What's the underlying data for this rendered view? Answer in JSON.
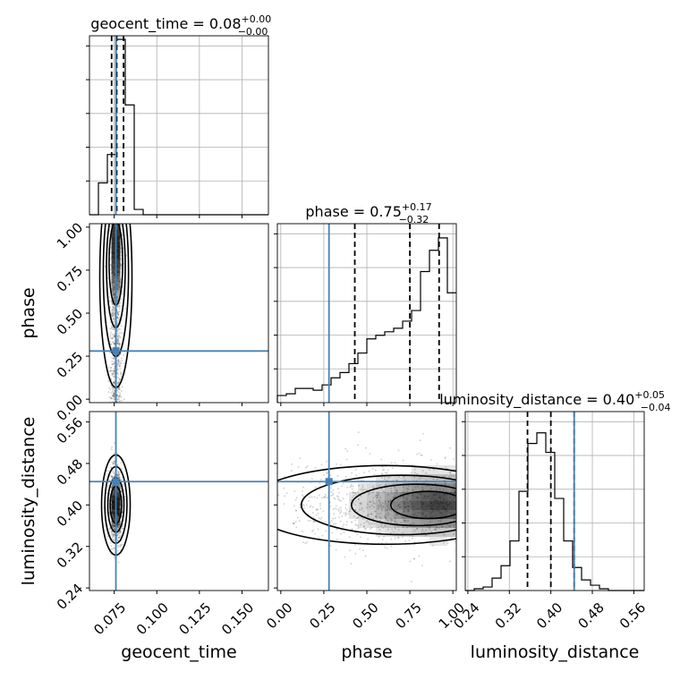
{
  "chart_data": {
    "type": "corner",
    "parameters": [
      {
        "name": "geocent_time",
        "axis_label": "geocent_time",
        "title_main": "geocent_time = 0.08",
        "title_plus": "+0.00",
        "title_minus": "−0.00",
        "range": [
          0.0605,
          0.1655
        ],
        "ticks": [
          0.075,
          0.1,
          0.125,
          0.15
        ],
        "tick_labels": [
          "0.075",
          "0.100",
          "0.125",
          "0.150"
        ],
        "truth": 0.076,
        "quantiles": [
          0.0735,
          0.0765,
          0.0805
        ],
        "hist": {
          "start": 0.0605,
          "bin_width": 0.00525,
          "counts": [
            0,
            0.18,
            0.34,
            0.99,
            0.62,
            0.03,
            0,
            0,
            0,
            0,
            0,
            0,
            0,
            0,
            0,
            0,
            0,
            0,
            0,
            0
          ]
        }
      },
      {
        "name": "phase",
        "axis_label": "phase",
        "title_main": "phase = 0.75",
        "title_plus": "+0.17",
        "title_minus": "−0.32",
        "range": [
          -0.02,
          1.02
        ],
        "ticks": [
          0.0,
          0.25,
          0.5,
          0.75,
          1.0
        ],
        "tick_labels": [
          "0.00",
          "0.25",
          "0.50",
          "0.75",
          "1.00"
        ],
        "truth": 0.28,
        "quantiles": [
          0.43,
          0.75,
          0.92
        ],
        "hist": {
          "start": -0.02,
          "bin_width": 0.052,
          "counts": [
            0.04,
            0.05,
            0.08,
            0.08,
            0.07,
            0.1,
            0.14,
            0.17,
            0.22,
            0.28,
            0.36,
            0.38,
            0.4,
            0.42,
            0.46,
            0.52,
            0.74,
            0.86,
            0.93,
            0.62
          ]
        }
      },
      {
        "name": "luminosity_distance",
        "axis_label": "luminosity_distance",
        "title_main": "luminosity_distance = 0.40",
        "title_plus": "+0.05",
        "title_minus": "−0.04",
        "range": [
          0.235,
          0.58
        ],
        "ticks": [
          0.24,
          0.32,
          0.4,
          0.48,
          0.56
        ],
        "tick_labels": [
          "0.24",
          "0.32",
          "0.40",
          "0.48",
          "0.56"
        ],
        "truth": 0.445,
        "quantiles": [
          0.355,
          0.4,
          0.445
        ],
        "hist": {
          "start": 0.235,
          "bin_width": 0.01725,
          "counts": [
            0,
            0.01,
            0.02,
            0.07,
            0.14,
            0.28,
            0.56,
            0.83,
            0.89,
            0.78,
            0.52,
            0.28,
            0.13,
            0.06,
            0.03,
            0.01,
            0,
            0,
            0,
            0
          ]
        }
      }
    ],
    "hexbin_peaks": {
      "phase_vs_geocent_time": {
        "x": 0.076,
        "y": 0.88
      },
      "luminosity_distance_vs_geocent_time": {
        "x": 0.076,
        "y": 0.4
      },
      "luminosity_distance_vs_phase": {
        "x": 0.92,
        "y": 0.4
      }
    }
  }
}
